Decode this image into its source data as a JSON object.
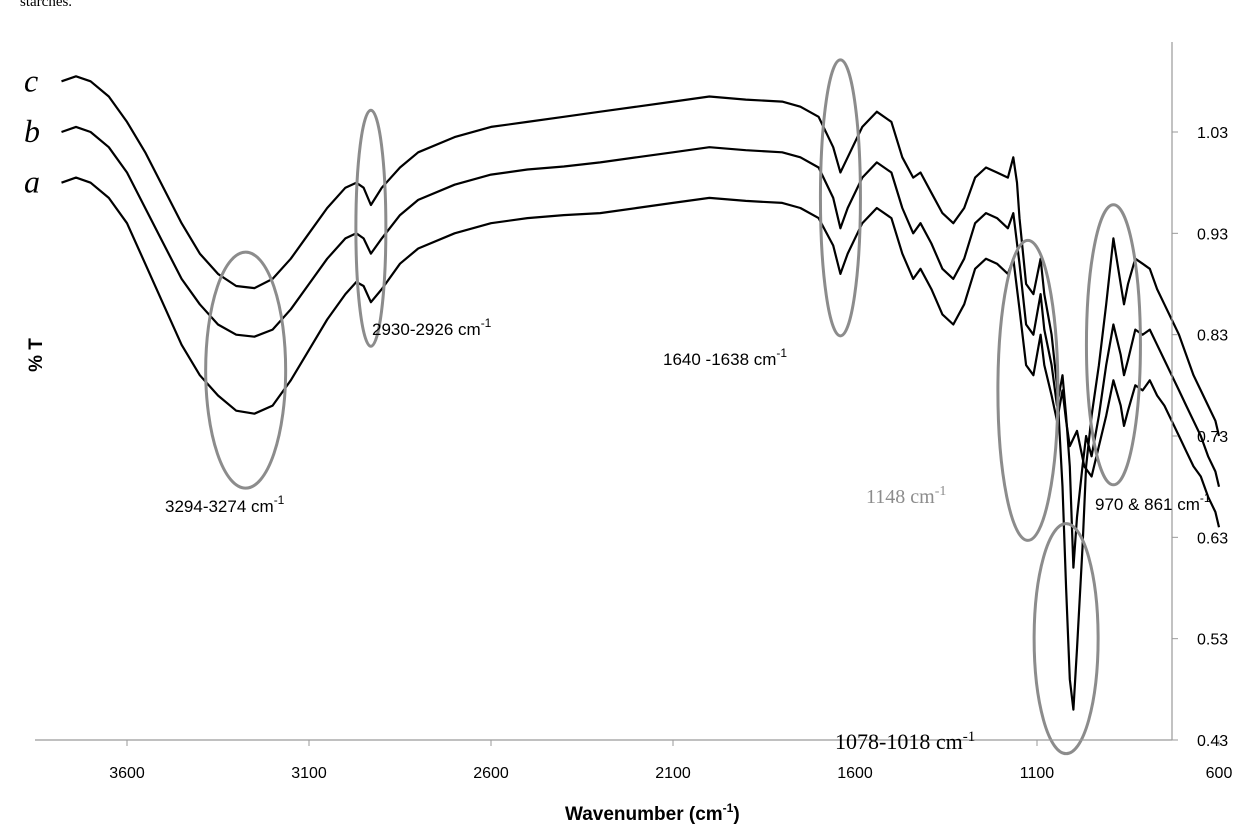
{
  "caption_fragment": "starches.",
  "chart_data": {
    "type": "line",
    "xlabel": "Wavenumber (cm-1)",
    "xlabel_main": "Wavenumber (cm",
    "xlabel_sup": "-1",
    "xlabel_close": ")",
    "ylabel": "% T",
    "xlim": [
      3800,
      600
    ],
    "ylim": [
      0.43,
      1.13
    ],
    "x_axis_reversed": true,
    "x_ticks": [
      3600,
      3100,
      2600,
      2100,
      1600,
      1100,
      600
    ],
    "y_ticks": [
      0.43,
      0.53,
      0.63,
      0.73,
      0.83,
      0.93,
      1.03
    ],
    "y_axis_position": "right",
    "grid": false,
    "line_color": "#000000",
    "marker_color": "#8c8c8c",
    "series": [
      {
        "name": "a",
        "points": [
          [
            3780,
            0.98
          ],
          [
            3740,
            0.985
          ],
          [
            3700,
            0.98
          ],
          [
            3650,
            0.965
          ],
          [
            3600,
            0.94
          ],
          [
            3550,
            0.9
          ],
          [
            3500,
            0.86
          ],
          [
            3450,
            0.82
          ],
          [
            3400,
            0.79
          ],
          [
            3350,
            0.77
          ],
          [
            3300,
            0.755
          ],
          [
            3250,
            0.752
          ],
          [
            3200,
            0.76
          ],
          [
            3150,
            0.785
          ],
          [
            3100,
            0.815
          ],
          [
            3050,
            0.845
          ],
          [
            3000,
            0.87
          ],
          [
            2970,
            0.882
          ],
          [
            2950,
            0.878
          ],
          [
            2930,
            0.862
          ],
          [
            2900,
            0.875
          ],
          [
            2850,
            0.9
          ],
          [
            2800,
            0.915
          ],
          [
            2700,
            0.93
          ],
          [
            2600,
            0.94
          ],
          [
            2500,
            0.945
          ],
          [
            2400,
            0.948
          ],
          [
            2300,
            0.95
          ],
          [
            2200,
            0.955
          ],
          [
            2100,
            0.96
          ],
          [
            2000,
            0.965
          ],
          [
            1900,
            0.962
          ],
          [
            1800,
            0.96
          ],
          [
            1750,
            0.955
          ],
          [
            1700,
            0.945
          ],
          [
            1660,
            0.918
          ],
          [
            1640,
            0.89
          ],
          [
            1620,
            0.91
          ],
          [
            1580,
            0.94
          ],
          [
            1540,
            0.955
          ],
          [
            1500,
            0.945
          ],
          [
            1470,
            0.91
          ],
          [
            1440,
            0.885
          ],
          [
            1420,
            0.895
          ],
          [
            1390,
            0.875
          ],
          [
            1360,
            0.85
          ],
          [
            1330,
            0.84
          ],
          [
            1300,
            0.86
          ],
          [
            1270,
            0.895
          ],
          [
            1240,
            0.905
          ],
          [
            1210,
            0.9
          ],
          [
            1180,
            0.89
          ],
          [
            1165,
            0.905
          ],
          [
            1148,
            0.855
          ],
          [
            1130,
            0.8
          ],
          [
            1110,
            0.79
          ],
          [
            1090,
            0.83
          ],
          [
            1080,
            0.8
          ],
          [
            1060,
            0.77
          ],
          [
            1045,
            0.745
          ],
          [
            1030,
            0.775
          ],
          [
            1020,
            0.745
          ],
          [
            1010,
            0.72
          ],
          [
            990,
            0.735
          ],
          [
            970,
            0.7
          ],
          [
            950,
            0.69
          ],
          [
            930,
            0.72
          ],
          [
            910,
            0.75
          ],
          [
            890,
            0.785
          ],
          [
            870,
            0.76
          ],
          [
            861,
            0.74
          ],
          [
            850,
            0.755
          ],
          [
            830,
            0.78
          ],
          [
            810,
            0.775
          ],
          [
            790,
            0.785
          ],
          [
            770,
            0.77
          ],
          [
            750,
            0.76
          ],
          [
            730,
            0.745
          ],
          [
            710,
            0.73
          ],
          [
            690,
            0.715
          ],
          [
            670,
            0.7
          ],
          [
            650,
            0.69
          ],
          [
            630,
            0.67
          ],
          [
            610,
            0.655
          ],
          [
            600,
            0.64
          ]
        ]
      },
      {
        "name": "b",
        "points": [
          [
            3780,
            1.03
          ],
          [
            3740,
            1.035
          ],
          [
            3700,
            1.03
          ],
          [
            3650,
            1.015
          ],
          [
            3600,
            0.99
          ],
          [
            3550,
            0.955
          ],
          [
            3500,
            0.92
          ],
          [
            3450,
            0.885
          ],
          [
            3400,
            0.86
          ],
          [
            3350,
            0.84
          ],
          [
            3300,
            0.83
          ],
          [
            3250,
            0.828
          ],
          [
            3200,
            0.835
          ],
          [
            3150,
            0.855
          ],
          [
            3100,
            0.88
          ],
          [
            3050,
            0.905
          ],
          [
            3000,
            0.925
          ],
          [
            2970,
            0.93
          ],
          [
            2950,
            0.925
          ],
          [
            2930,
            0.91
          ],
          [
            2900,
            0.925
          ],
          [
            2850,
            0.948
          ],
          [
            2800,
            0.963
          ],
          [
            2700,
            0.978
          ],
          [
            2600,
            0.988
          ],
          [
            2500,
            0.993
          ],
          [
            2400,
            0.996
          ],
          [
            2300,
            1.0
          ],
          [
            2200,
            1.005
          ],
          [
            2100,
            1.01
          ],
          [
            2000,
            1.015
          ],
          [
            1900,
            1.012
          ],
          [
            1800,
            1.01
          ],
          [
            1750,
            1.005
          ],
          [
            1700,
            0.995
          ],
          [
            1660,
            0.965
          ],
          [
            1640,
            0.935
          ],
          [
            1620,
            0.955
          ],
          [
            1580,
            0.985
          ],
          [
            1540,
            1.0
          ],
          [
            1500,
            0.99
          ],
          [
            1470,
            0.955
          ],
          [
            1440,
            0.93
          ],
          [
            1420,
            0.94
          ],
          [
            1390,
            0.92
          ],
          [
            1360,
            0.895
          ],
          [
            1330,
            0.885
          ],
          [
            1300,
            0.905
          ],
          [
            1270,
            0.94
          ],
          [
            1240,
            0.95
          ],
          [
            1210,
            0.945
          ],
          [
            1180,
            0.935
          ],
          [
            1165,
            0.95
          ],
          [
            1148,
            0.9
          ],
          [
            1130,
            0.84
          ],
          [
            1110,
            0.83
          ],
          [
            1090,
            0.87
          ],
          [
            1080,
            0.835
          ],
          [
            1060,
            0.8
          ],
          [
            1045,
            0.76
          ],
          [
            1030,
            0.79
          ],
          [
            1020,
            0.75
          ],
          [
            1010,
            0.7
          ],
          [
            1000,
            0.6
          ],
          [
            990,
            0.65
          ],
          [
            975,
            0.7
          ],
          [
            965,
            0.73
          ],
          [
            950,
            0.71
          ],
          [
            930,
            0.75
          ],
          [
            910,
            0.8
          ],
          [
            890,
            0.84
          ],
          [
            870,
            0.81
          ],
          [
            861,
            0.79
          ],
          [
            850,
            0.805
          ],
          [
            830,
            0.835
          ],
          [
            810,
            0.83
          ],
          [
            790,
            0.835
          ],
          [
            770,
            0.82
          ],
          [
            750,
            0.805
          ],
          [
            730,
            0.79
          ],
          [
            710,
            0.775
          ],
          [
            690,
            0.76
          ],
          [
            670,
            0.745
          ],
          [
            650,
            0.73
          ],
          [
            630,
            0.71
          ],
          [
            610,
            0.695
          ],
          [
            600,
            0.68
          ]
        ]
      },
      {
        "name": "c",
        "points": [
          [
            3780,
            1.08
          ],
          [
            3740,
            1.085
          ],
          [
            3700,
            1.08
          ],
          [
            3650,
            1.065
          ],
          [
            3600,
            1.04
          ],
          [
            3550,
            1.01
          ],
          [
            3500,
            0.975
          ],
          [
            3450,
            0.94
          ],
          [
            3400,
            0.91
          ],
          [
            3350,
            0.89
          ],
          [
            3300,
            0.878
          ],
          [
            3250,
            0.876
          ],
          [
            3200,
            0.885
          ],
          [
            3150,
            0.905
          ],
          [
            3100,
            0.93
          ],
          [
            3050,
            0.955
          ],
          [
            3000,
            0.975
          ],
          [
            2970,
            0.98
          ],
          [
            2950,
            0.975
          ],
          [
            2930,
            0.958
          ],
          [
            2900,
            0.975
          ],
          [
            2850,
            0.995
          ],
          [
            2800,
            1.01
          ],
          [
            2700,
            1.025
          ],
          [
            2600,
            1.035
          ],
          [
            2500,
            1.04
          ],
          [
            2400,
            1.045
          ],
          [
            2300,
            1.05
          ],
          [
            2200,
            1.055
          ],
          [
            2100,
            1.06
          ],
          [
            2000,
            1.065
          ],
          [
            1900,
            1.062
          ],
          [
            1800,
            1.06
          ],
          [
            1750,
            1.055
          ],
          [
            1700,
            1.045
          ],
          [
            1660,
            1.015
          ],
          [
            1640,
            0.99
          ],
          [
            1620,
            1.005
          ],
          [
            1580,
            1.035
          ],
          [
            1540,
            1.05
          ],
          [
            1500,
            1.04
          ],
          [
            1470,
            1.005
          ],
          [
            1440,
            0.985
          ],
          [
            1420,
            0.99
          ],
          [
            1390,
            0.97
          ],
          [
            1360,
            0.95
          ],
          [
            1330,
            0.94
          ],
          [
            1300,
            0.955
          ],
          [
            1270,
            0.985
          ],
          [
            1240,
            0.995
          ],
          [
            1210,
            0.99
          ],
          [
            1180,
            0.985
          ],
          [
            1165,
            1.005
          ],
          [
            1155,
            0.98
          ],
          [
            1148,
            0.945
          ],
          [
            1130,
            0.88
          ],
          [
            1110,
            0.87
          ],
          [
            1090,
            0.905
          ],
          [
            1080,
            0.87
          ],
          [
            1060,
            0.83
          ],
          [
            1045,
            0.78
          ],
          [
            1030,
            0.68
          ],
          [
            1020,
            0.58
          ],
          [
            1010,
            0.49
          ],
          [
            1000,
            0.46
          ],
          [
            990,
            0.52
          ],
          [
            975,
            0.62
          ],
          [
            965,
            0.7
          ],
          [
            950,
            0.75
          ],
          [
            930,
            0.8
          ],
          [
            910,
            0.86
          ],
          [
            890,
            0.925
          ],
          [
            870,
            0.88
          ],
          [
            861,
            0.86
          ],
          [
            850,
            0.88
          ],
          [
            830,
            0.905
          ],
          [
            810,
            0.9
          ],
          [
            790,
            0.895
          ],
          [
            770,
            0.875
          ],
          [
            750,
            0.86
          ],
          [
            730,
            0.845
          ],
          [
            710,
            0.83
          ],
          [
            690,
            0.81
          ],
          [
            670,
            0.79
          ],
          [
            650,
            0.775
          ],
          [
            630,
            0.76
          ],
          [
            610,
            0.745
          ],
          [
            600,
            0.73
          ]
        ]
      }
    ],
    "annotations": [
      {
        "id": "band-3294",
        "text": "3294-3274 cm",
        "sup": "-1",
        "color": "#000000",
        "font": "sans"
      },
      {
        "id": "band-2930",
        "text": "2930-2926 cm",
        "sup": "-1",
        "color": "#000000",
        "font": "sans"
      },
      {
        "id": "band-1640",
        "text": "1640 -1638 cm",
        "sup": "-1",
        "color": "#000000",
        "font": "sans"
      },
      {
        "id": "band-1148",
        "text": "1148 cm",
        "sup": "-1",
        "color": "#8c8c8c",
        "font": "serif"
      },
      {
        "id": "band-970",
        "text": "970 & 861 cm",
        "sup": "-1",
        "color": "#000000",
        "font": "sans"
      },
      {
        "id": "band-1078",
        "text": "1078-1018 cm",
        "sup": "-1",
        "color": "#000000",
        "font": "serif"
      }
    ]
  }
}
